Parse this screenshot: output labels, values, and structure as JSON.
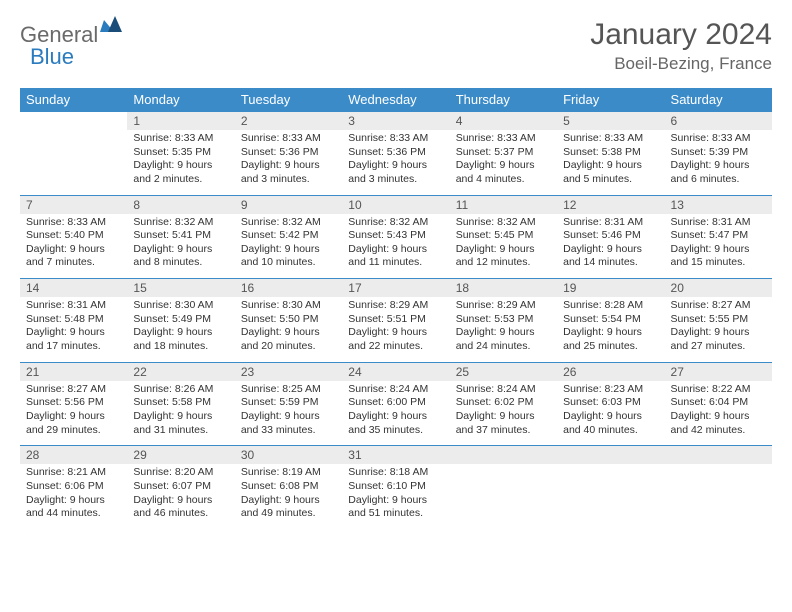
{
  "brand": {
    "part1": "General",
    "part2": "Blue"
  },
  "title": "January 2024",
  "location": "Boeil-Bezing, France",
  "colors": {
    "header_bg": "#3b8bc9",
    "header_fg": "#ffffff",
    "daynum_bg": "#ececec",
    "row_border": "#3b8bc9",
    "text": "#333333",
    "title_color": "#555555",
    "background": "#ffffff"
  },
  "layout": {
    "columns": 7,
    "rows": 5,
    "first_weekday_offset": 1,
    "days_in_month": 31
  },
  "weekdays": [
    "Sunday",
    "Monday",
    "Tuesday",
    "Wednesday",
    "Thursday",
    "Friday",
    "Saturday"
  ],
  "days": [
    {
      "n": 1,
      "sunrise": "8:33 AM",
      "sunset": "5:35 PM",
      "daylight": "9 hours and 2 minutes."
    },
    {
      "n": 2,
      "sunrise": "8:33 AM",
      "sunset": "5:36 PM",
      "daylight": "9 hours and 3 minutes."
    },
    {
      "n": 3,
      "sunrise": "8:33 AM",
      "sunset": "5:36 PM",
      "daylight": "9 hours and 3 minutes."
    },
    {
      "n": 4,
      "sunrise": "8:33 AM",
      "sunset": "5:37 PM",
      "daylight": "9 hours and 4 minutes."
    },
    {
      "n": 5,
      "sunrise": "8:33 AM",
      "sunset": "5:38 PM",
      "daylight": "9 hours and 5 minutes."
    },
    {
      "n": 6,
      "sunrise": "8:33 AM",
      "sunset": "5:39 PM",
      "daylight": "9 hours and 6 minutes."
    },
    {
      "n": 7,
      "sunrise": "8:33 AM",
      "sunset": "5:40 PM",
      "daylight": "9 hours and 7 minutes."
    },
    {
      "n": 8,
      "sunrise": "8:32 AM",
      "sunset": "5:41 PM",
      "daylight": "9 hours and 8 minutes."
    },
    {
      "n": 9,
      "sunrise": "8:32 AM",
      "sunset": "5:42 PM",
      "daylight": "9 hours and 10 minutes."
    },
    {
      "n": 10,
      "sunrise": "8:32 AM",
      "sunset": "5:43 PM",
      "daylight": "9 hours and 11 minutes."
    },
    {
      "n": 11,
      "sunrise": "8:32 AM",
      "sunset": "5:45 PM",
      "daylight": "9 hours and 12 minutes."
    },
    {
      "n": 12,
      "sunrise": "8:31 AM",
      "sunset": "5:46 PM",
      "daylight": "9 hours and 14 minutes."
    },
    {
      "n": 13,
      "sunrise": "8:31 AM",
      "sunset": "5:47 PM",
      "daylight": "9 hours and 15 minutes."
    },
    {
      "n": 14,
      "sunrise": "8:31 AM",
      "sunset": "5:48 PM",
      "daylight": "9 hours and 17 minutes."
    },
    {
      "n": 15,
      "sunrise": "8:30 AM",
      "sunset": "5:49 PM",
      "daylight": "9 hours and 18 minutes."
    },
    {
      "n": 16,
      "sunrise": "8:30 AM",
      "sunset": "5:50 PM",
      "daylight": "9 hours and 20 minutes."
    },
    {
      "n": 17,
      "sunrise": "8:29 AM",
      "sunset": "5:51 PM",
      "daylight": "9 hours and 22 minutes."
    },
    {
      "n": 18,
      "sunrise": "8:29 AM",
      "sunset": "5:53 PM",
      "daylight": "9 hours and 24 minutes."
    },
    {
      "n": 19,
      "sunrise": "8:28 AM",
      "sunset": "5:54 PM",
      "daylight": "9 hours and 25 minutes."
    },
    {
      "n": 20,
      "sunrise": "8:27 AM",
      "sunset": "5:55 PM",
      "daylight": "9 hours and 27 minutes."
    },
    {
      "n": 21,
      "sunrise": "8:27 AM",
      "sunset": "5:56 PM",
      "daylight": "9 hours and 29 minutes."
    },
    {
      "n": 22,
      "sunrise": "8:26 AM",
      "sunset": "5:58 PM",
      "daylight": "9 hours and 31 minutes."
    },
    {
      "n": 23,
      "sunrise": "8:25 AM",
      "sunset": "5:59 PM",
      "daylight": "9 hours and 33 minutes."
    },
    {
      "n": 24,
      "sunrise": "8:24 AM",
      "sunset": "6:00 PM",
      "daylight": "9 hours and 35 minutes."
    },
    {
      "n": 25,
      "sunrise": "8:24 AM",
      "sunset": "6:02 PM",
      "daylight": "9 hours and 37 minutes."
    },
    {
      "n": 26,
      "sunrise": "8:23 AM",
      "sunset": "6:03 PM",
      "daylight": "9 hours and 40 minutes."
    },
    {
      "n": 27,
      "sunrise": "8:22 AM",
      "sunset": "6:04 PM",
      "daylight": "9 hours and 42 minutes."
    },
    {
      "n": 28,
      "sunrise": "8:21 AM",
      "sunset": "6:06 PM",
      "daylight": "9 hours and 44 minutes."
    },
    {
      "n": 29,
      "sunrise": "8:20 AM",
      "sunset": "6:07 PM",
      "daylight": "9 hours and 46 minutes."
    },
    {
      "n": 30,
      "sunrise": "8:19 AM",
      "sunset": "6:08 PM",
      "daylight": "9 hours and 49 minutes."
    },
    {
      "n": 31,
      "sunrise": "8:18 AM",
      "sunset": "6:10 PM",
      "daylight": "9 hours and 51 minutes."
    }
  ],
  "labels": {
    "sunrise": "Sunrise:",
    "sunset": "Sunset:",
    "daylight": "Daylight:"
  }
}
